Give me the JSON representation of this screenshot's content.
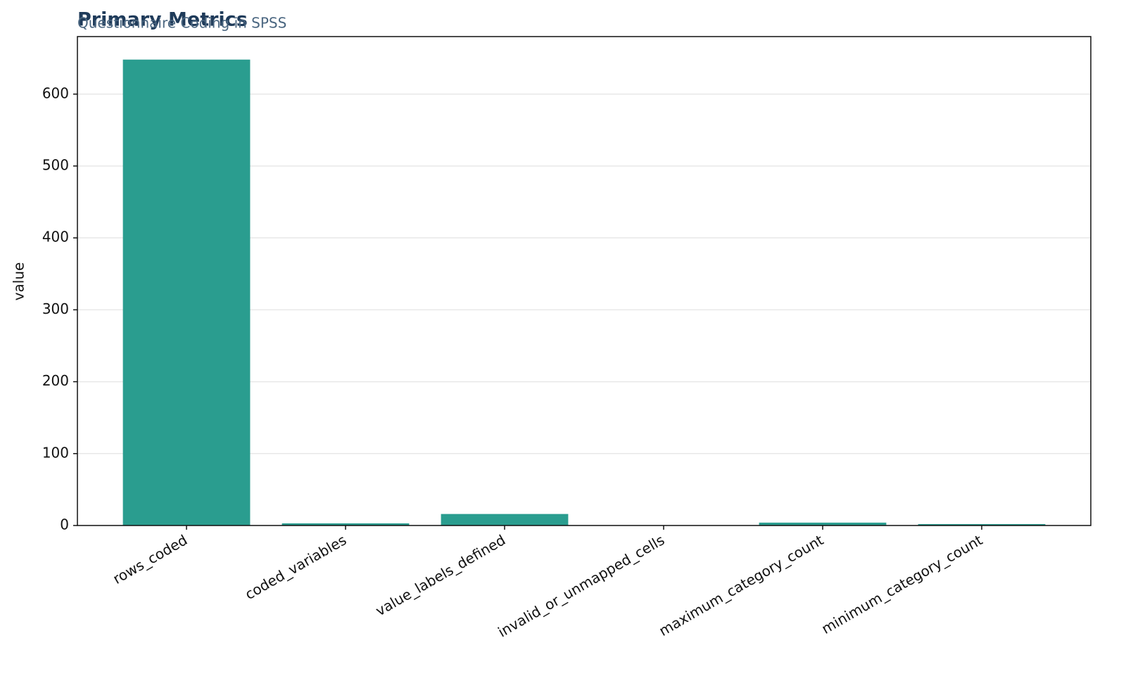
{
  "chart_data": {
    "type": "bar",
    "title": "Primary Metrics",
    "subtitle": "Questionnaire Coding in SPSS",
    "y_label": "value",
    "categories": [
      "rows_coded",
      "coded_variables",
      "value_labels_defined",
      "invalid_or_unmapped_cells",
      "maximum_category_count",
      "minimum_category_count"
    ],
    "values": [
      648,
      3,
      16,
      0,
      4,
      2
    ],
    "color": "#2a9d8f",
    "ylim": [
      0,
      680
    ],
    "yticks": [
      0,
      100,
      200,
      300,
      400,
      500,
      600
    ],
    "grid": true
  }
}
